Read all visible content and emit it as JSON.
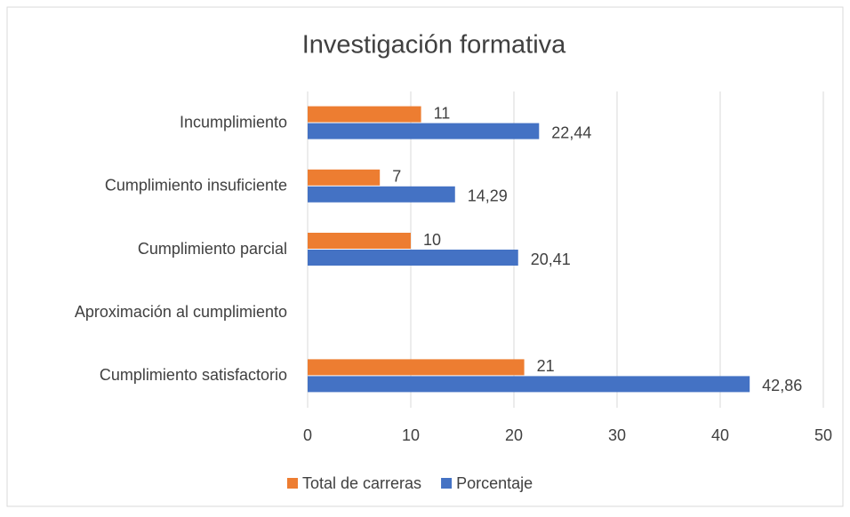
{
  "chart_data": {
    "type": "hbar",
    "title": "Investigación formativa",
    "categories": [
      "Incumplimiento",
      "Cumplimiento insuficiente",
      "Cumplimiento parcial",
      "Aproximación al cumplimiento",
      "Cumplimiento satisfactorio"
    ],
    "series": [
      {
        "name": "Total de carreras",
        "color": "#ed7d31",
        "values": [
          11,
          7,
          10,
          null,
          21
        ],
        "value_labels": [
          "11",
          "7",
          "10",
          null,
          "21"
        ]
      },
      {
        "name": "Porcentaje",
        "color": "#4472c4",
        "values": [
          22.44,
          14.29,
          20.41,
          null,
          42.86
        ],
        "value_labels": [
          "22,44",
          "14,29",
          "20,41",
          null,
          "42,86"
        ]
      }
    ],
    "xlim": [
      0,
      50
    ],
    "xticks": [
      0,
      10,
      20,
      30,
      40,
      50
    ],
    "grid": true,
    "legend": "bottom"
  }
}
